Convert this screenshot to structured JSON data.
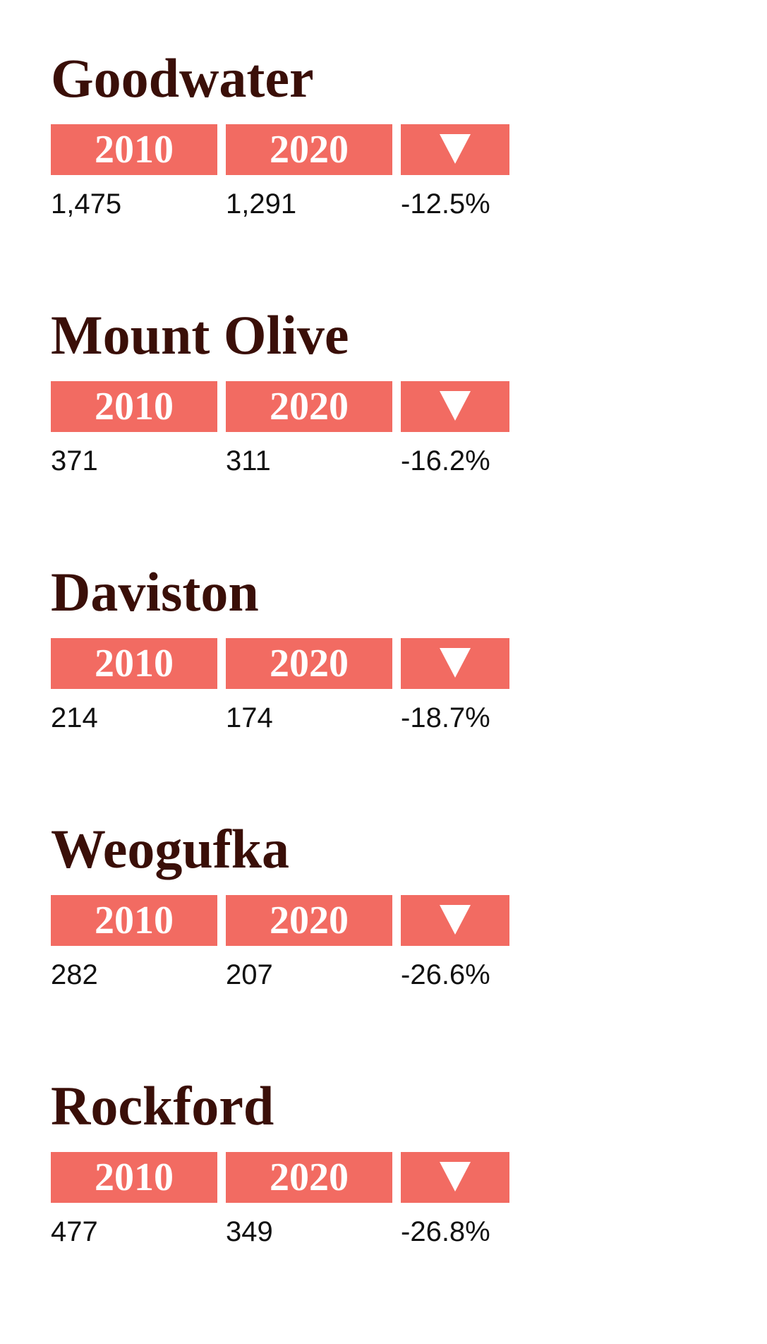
{
  "chart_data": {
    "type": "table",
    "columns": [
      "2010",
      "2020",
      "change"
    ],
    "change_icon": "triangle-down-icon",
    "colors": {
      "header_bg": "#f26b62",
      "header_text": "#ffffff",
      "town_name": "#3a0f08",
      "value_text": "#111111"
    },
    "rows": [
      {
        "name": "Goodwater",
        "y2010": "1,475",
        "y2020": "1,291",
        "change": "-12.5%"
      },
      {
        "name": "Mount Olive",
        "y2010": "371",
        "y2020": "311",
        "change": "-16.2%"
      },
      {
        "name": "Daviston",
        "y2010": "214",
        "y2020": "174",
        "change": "-18.7%"
      },
      {
        "name": "Weogufka",
        "y2010": "282",
        "y2020": "207",
        "change": "-26.6%"
      },
      {
        "name": "Rockford",
        "y2010": "477",
        "y2020": "349",
        "change": "-26.8%"
      }
    ]
  }
}
